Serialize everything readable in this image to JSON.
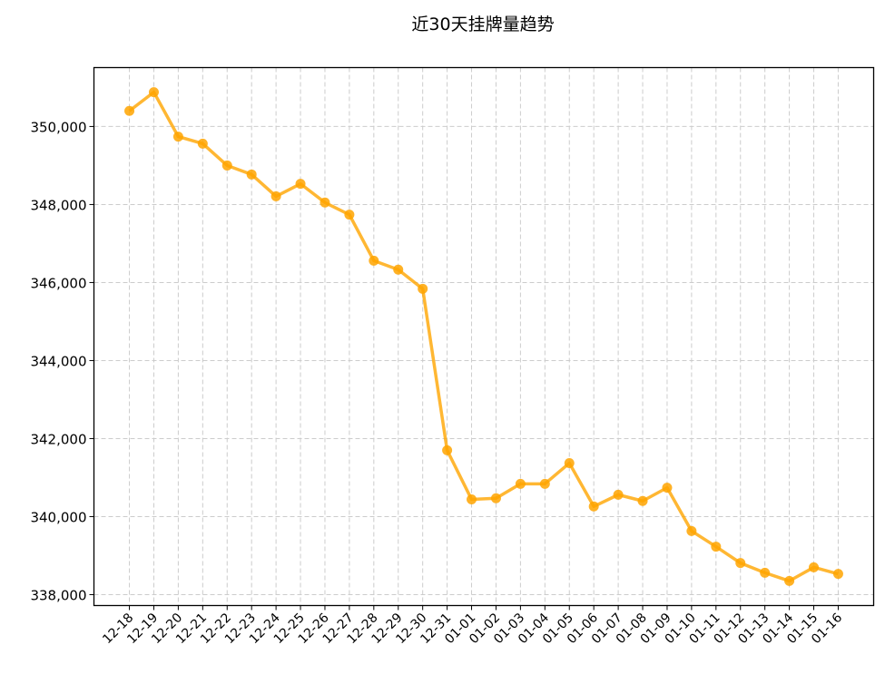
{
  "chart_data": {
    "type": "line",
    "title": "近30天挂牌量趋势",
    "xlabel": "",
    "ylabel": "",
    "categories": [
      "12-18",
      "12-19",
      "12-20",
      "12-21",
      "12-22",
      "12-23",
      "12-24",
      "12-25",
      "12-26",
      "12-27",
      "12-28",
      "12-29",
      "12-30",
      "12-31",
      "01-01",
      "01-02",
      "01-03",
      "01-04",
      "01-05",
      "01-06",
      "01-07",
      "01-08",
      "01-09",
      "01-10",
      "01-11",
      "01-12",
      "01-13",
      "01-14",
      "01-15",
      "01-16"
    ],
    "values": [
      350400,
      350880,
      349740,
      349560,
      349000,
      348770,
      348210,
      348530,
      348050,
      347740,
      346560,
      346330,
      345840,
      341700,
      340440,
      340470,
      340840,
      340840,
      341370,
      340260,
      340560,
      340400,
      340740,
      339630,
      339230,
      338810,
      338560,
      338350,
      338700,
      338530
    ],
    "ylim": [
      337720,
      351510
    ],
    "yticks": [
      338000,
      340000,
      342000,
      344000,
      346000,
      348000,
      350000
    ],
    "ytick_labels": [
      "338,000",
      "340,000",
      "342,000",
      "344,000",
      "346,000",
      "348,000",
      "350,000"
    ],
    "grid": true,
    "grid_style": "dashed",
    "color": "#FFA500",
    "marker": "circle"
  }
}
